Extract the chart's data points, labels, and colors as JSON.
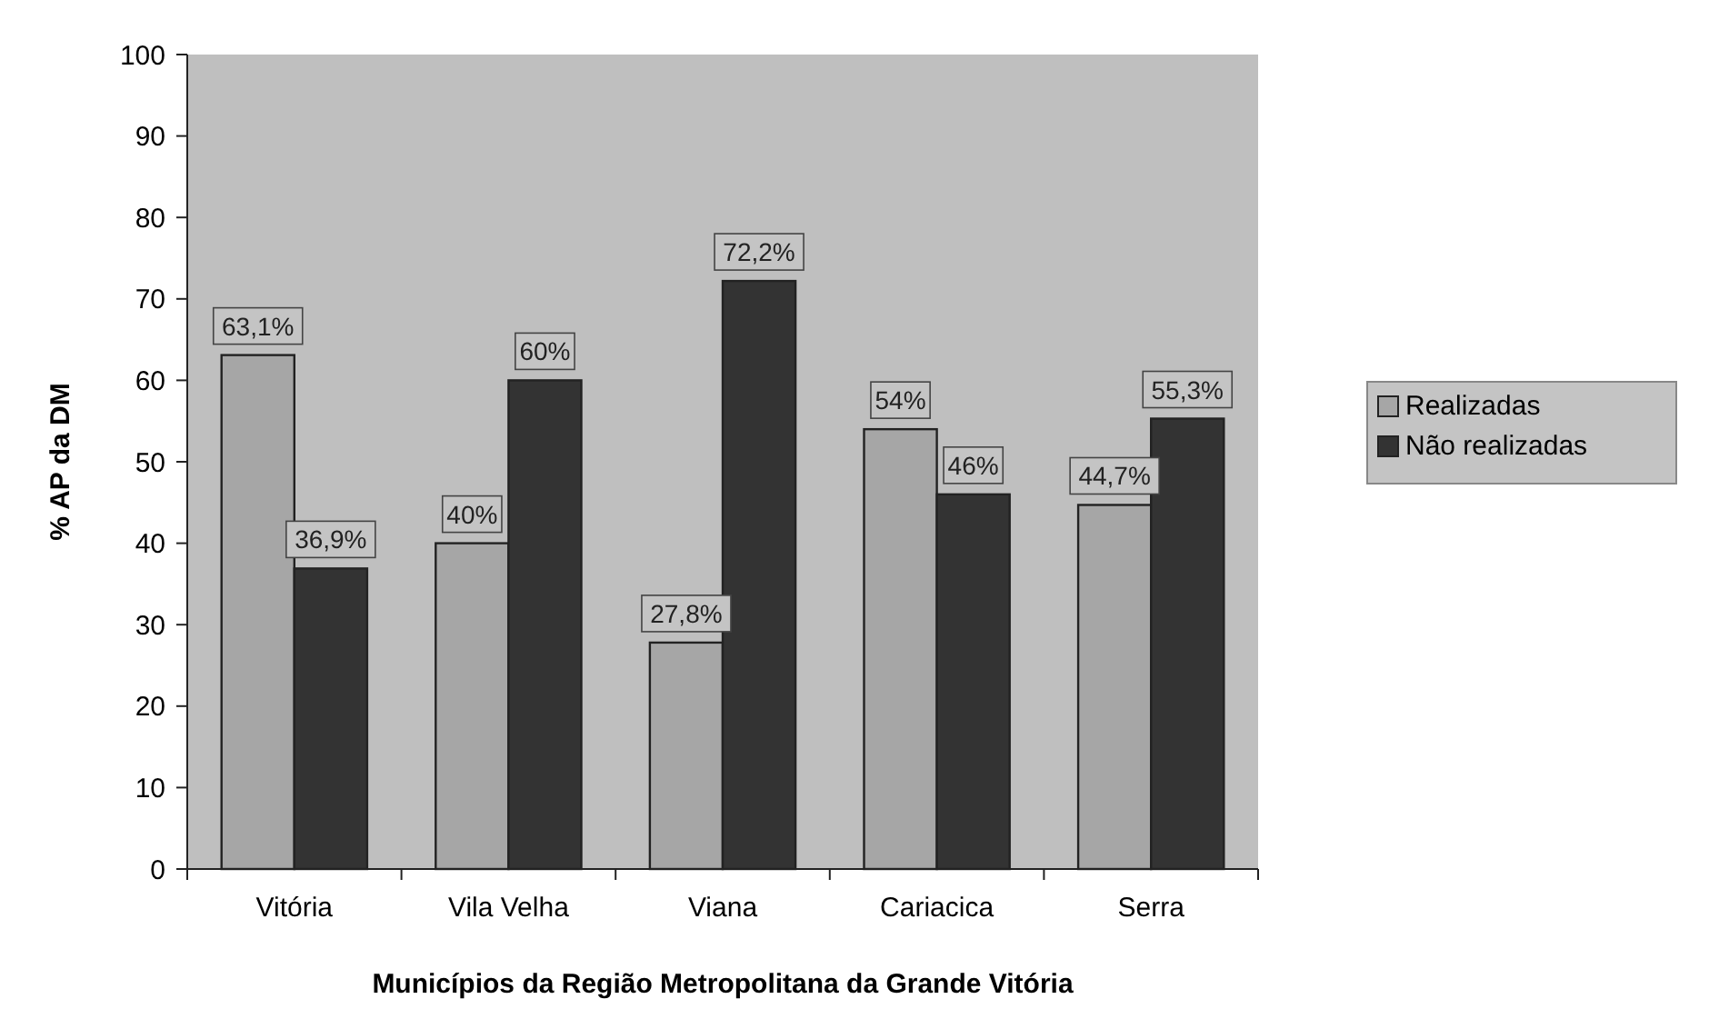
{
  "chart_data": {
    "type": "bar",
    "xlabel": "Municípios da Região Metropolitana da Grande Vitória",
    "ylabel": "% AP da DM",
    "categories": [
      "Vitória",
      "Vila Velha",
      "Viana",
      "Cariacica",
      "Serra"
    ],
    "series": [
      {
        "name": "Realizadas",
        "color": "#a6a6a6",
        "values": [
          63.1,
          40,
          27.8,
          54,
          44.7
        ],
        "value_labels": [
          "63,1%",
          "40%",
          "27,8%",
          "54%",
          "44,7%"
        ]
      },
      {
        "name": "Não realizadas",
        "color": "#333333",
        "values": [
          36.9,
          60,
          72.2,
          46,
          55.3
        ],
        "value_labels": [
          "36,9%",
          "60%",
          "72,2%",
          "46%",
          "55,3%"
        ]
      }
    ],
    "ylim": [
      0,
      100
    ],
    "yticks": [
      0,
      10,
      20,
      30,
      40,
      50,
      60,
      70,
      80,
      90,
      100
    ],
    "grid": false,
    "legend": "right"
  }
}
